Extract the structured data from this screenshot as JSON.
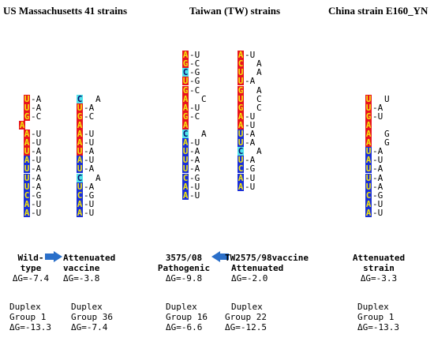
{
  "headers": {
    "us": "US Massachusetts 41  strains",
    "tw": "Taiwan (TW) strains",
    "china": "China strain E160_YN"
  },
  "colors": {
    "red": "#e8141e",
    "blue": "#1a2fd8",
    "cyan": "#4fe3ea",
    "arrow": "#2a6fc9"
  },
  "structures": [
    {
      "id": "wild-type",
      "col_x": 30,
      "rows": [
        {
          "r": 6,
          "b": "U",
          "c": "red",
          "p": "-A"
        },
        {
          "r": 7,
          "b": "U",
          "c": "red",
          "p": "-A"
        },
        {
          "r": 8,
          "b": "G",
          "c": "red",
          "p": "-C"
        },
        {
          "r": 9,
          "b": "A",
          "c": "red",
          "p": "",
          "shift": -6
        },
        {
          "r": 10,
          "b": "A",
          "c": "red",
          "p": "-U"
        },
        {
          "r": 11,
          "b": "A",
          "c": "red",
          "p": "-U"
        },
        {
          "r": 12,
          "b": "U",
          "c": "red",
          "p": "-A"
        },
        {
          "r": 13,
          "b": "A",
          "c": "blue",
          "p": "-U"
        },
        {
          "r": 14,
          "b": "U",
          "c": "blue",
          "p": "-A"
        },
        {
          "r": 15,
          "b": "U",
          "c": "blue",
          "p": "-A"
        },
        {
          "r": 16,
          "b": "U",
          "c": "blue",
          "p": "-A"
        },
        {
          "r": 17,
          "b": "C",
          "c": "blue",
          "p": "-G"
        },
        {
          "r": 18,
          "b": "A",
          "c": "blue",
          "p": "-U"
        },
        {
          "r": 19,
          "b": "A",
          "c": "blue",
          "p": "-U"
        }
      ]
    },
    {
      "id": "attenuated-vaccine",
      "col_x": 97,
      "rows": [
        {
          "r": 6,
          "b": "C",
          "c": "cyan",
          "p": "",
          "bulge": "A"
        },
        {
          "r": 7,
          "b": "U",
          "c": "red",
          "p": "-A"
        },
        {
          "r": 8,
          "b": "G",
          "c": "red",
          "p": "-C"
        },
        {
          "r": 9,
          "b": "A",
          "c": "red",
          "p": ""
        },
        {
          "r": 10,
          "b": "A",
          "c": "red",
          "p": "-U"
        },
        {
          "r": 11,
          "b": "A",
          "c": "red",
          "p": "-U"
        },
        {
          "r": 12,
          "b": "U",
          "c": "red",
          "p": "-A"
        },
        {
          "r": 13,
          "b": "A",
          "c": "blue",
          "p": "-U"
        },
        {
          "r": 14,
          "b": "U",
          "c": "blue",
          "p": "-A"
        },
        {
          "r": 15,
          "b": "C",
          "c": "cyan",
          "p": "",
          "bulge": "A"
        },
        {
          "r": 16,
          "b": "U",
          "c": "blue",
          "p": "-A"
        },
        {
          "r": 17,
          "b": "C",
          "c": "blue",
          "p": "-G"
        },
        {
          "r": 18,
          "b": "A",
          "c": "blue",
          "p": "-U"
        },
        {
          "r": 19,
          "b": "A",
          "c": "blue",
          "p": "-U"
        }
      ]
    },
    {
      "id": "tw-3575",
      "col_x": 231,
      "rows": [
        {
          "r": 1,
          "b": "A",
          "c": "red",
          "p": "-U"
        },
        {
          "r": 2,
          "b": "G",
          "c": "red",
          "p": "-C"
        },
        {
          "r": 3,
          "b": "C",
          "c": "cyan",
          "p": "-G"
        },
        {
          "r": 4,
          "b": "U",
          "c": "red",
          "p": "-G"
        },
        {
          "r": 5,
          "b": "G",
          "c": "red",
          "p": "-C"
        },
        {
          "r": 6,
          "b": "A",
          "c": "red",
          "p": "",
          "bulge": "C"
        },
        {
          "r": 7,
          "b": "A",
          "c": "red",
          "p": "-U"
        },
        {
          "r": 8,
          "b": "G",
          "c": "red",
          "p": "-C"
        },
        {
          "r": 9,
          "b": "A",
          "c": "red",
          "p": ""
        },
        {
          "r": 10,
          "b": "C",
          "c": "cyan",
          "p": "",
          "bulge": "A"
        },
        {
          "r": 11,
          "b": "A",
          "c": "blue",
          "p": "-U"
        },
        {
          "r": 12,
          "b": "U",
          "c": "blue",
          "p": "-A"
        },
        {
          "r": 13,
          "b": "U",
          "c": "blue",
          "p": "-A"
        },
        {
          "r": 14,
          "b": "U",
          "c": "blue",
          "p": "-A"
        },
        {
          "r": 15,
          "b": "C",
          "c": "blue",
          "p": "-G"
        },
        {
          "r": 16,
          "b": "A",
          "c": "blue",
          "p": "-U"
        },
        {
          "r": 17,
          "b": "A",
          "c": "blue",
          "p": "-U"
        }
      ]
    },
    {
      "id": "tw2575",
      "col_x": 301,
      "rows": [
        {
          "r": 1,
          "b": "A",
          "c": "red",
          "p": "-U"
        },
        {
          "r": 2,
          "b": "C",
          "c": "red",
          "p": "",
          "bulge": "A"
        },
        {
          "r": 3,
          "b": "U",
          "c": "red",
          "p": "",
          "bulge": "A"
        },
        {
          "r": 4,
          "b": "U",
          "c": "red",
          "p": "-A"
        },
        {
          "r": 5,
          "b": "G",
          "c": "red",
          "p": "",
          "bulge": "A"
        },
        {
          "r": 6,
          "b": "U",
          "c": "red",
          "p": "",
          "bulge": "C"
        },
        {
          "r": 7,
          "b": "G",
          "c": "red",
          "p": "",
          "bulge": "C"
        },
        {
          "r": 8,
          "b": "A",
          "c": "red",
          "p": "-U"
        },
        {
          "r": 9,
          "b": "A",
          "c": "red",
          "p": "-U"
        },
        {
          "r": 10,
          "b": "U",
          "c": "blue",
          "p": "-A"
        },
        {
          "r": 11,
          "b": "U",
          "c": "blue",
          "p": "-A"
        },
        {
          "r": 12,
          "b": "C",
          "c": "cyan",
          "p": "",
          "bulge": "A"
        },
        {
          "r": 13,
          "b": "U",
          "c": "blue",
          "p": "-A"
        },
        {
          "r": 14,
          "b": "C",
          "c": "blue",
          "p": "-G"
        },
        {
          "r": 15,
          "b": "A",
          "c": "blue",
          "p": "-U"
        },
        {
          "r": 16,
          "b": "A",
          "c": "blue",
          "p": "-U"
        }
      ]
    },
    {
      "id": "china-e160",
      "col_x": 463,
      "rows": [
        {
          "r": 6,
          "b": "U",
          "c": "red",
          "p": "",
          "bulge": "U"
        },
        {
          "r": 7,
          "b": "U",
          "c": "red",
          "p": "-A"
        },
        {
          "r": 8,
          "b": "G",
          "c": "red",
          "p": "-U"
        },
        {
          "r": 9,
          "b": "A",
          "c": "red",
          "p": ""
        },
        {
          "r": 10,
          "b": "A",
          "c": "red",
          "p": "",
          "bulge": "G"
        },
        {
          "r": 11,
          "b": "A",
          "c": "red",
          "p": "",
          "bulge": "G"
        },
        {
          "r": 12,
          "b": "U",
          "c": "blue",
          "p": "-A"
        },
        {
          "r": 13,
          "b": "A",
          "c": "blue",
          "p": "-U"
        },
        {
          "r": 14,
          "b": "U",
          "c": "blue",
          "p": "-A"
        },
        {
          "r": 15,
          "b": "U",
          "c": "blue",
          "p": "-A"
        },
        {
          "r": 16,
          "b": "U",
          "c": "blue",
          "p": "-A"
        },
        {
          "r": 17,
          "b": "C",
          "c": "blue",
          "p": "-G"
        },
        {
          "r": 18,
          "b": "A",
          "c": "blue",
          "p": "-U"
        },
        {
          "r": 19,
          "b": "A",
          "c": "blue",
          "p": "-U"
        }
      ]
    }
  ],
  "labels": {
    "wild": {
      "l1": "Wild-",
      "l2": "type",
      "dg": "ΔG=-7.4",
      "d1": "Duplex",
      "d2": "Group 1",
      "d3": "ΔG=-13.3"
    },
    "vaccine": {
      "l1": "Attenuated",
      "l2": "vaccine",
      "dg": "ΔG=-3.8",
      "d1": "Duplex",
      "d2": "Group 36",
      "d3": "ΔG=-7.4"
    },
    "tw3575": {
      "l1": "3575/08",
      "l2": "Pathogenic",
      "dg": "ΔG=-9.8",
      "d1": "Duplex",
      "d2": "Group 16",
      "d3": "ΔG=-6.6"
    },
    "tw2575": {
      "l1": "TW2575/98vaccine",
      "l2": "Attenuated",
      "dg": "ΔG=-2.0",
      "d1": "Duplex",
      "d2": "Group 22",
      "d3": "ΔG=-12.5"
    },
    "china": {
      "l1": "Attenuated",
      "l2": "strain",
      "dg": "ΔG=-3.3",
      "d1": "Duplex",
      "d2": "Group 1",
      "d3": "ΔG=-13.3"
    }
  }
}
